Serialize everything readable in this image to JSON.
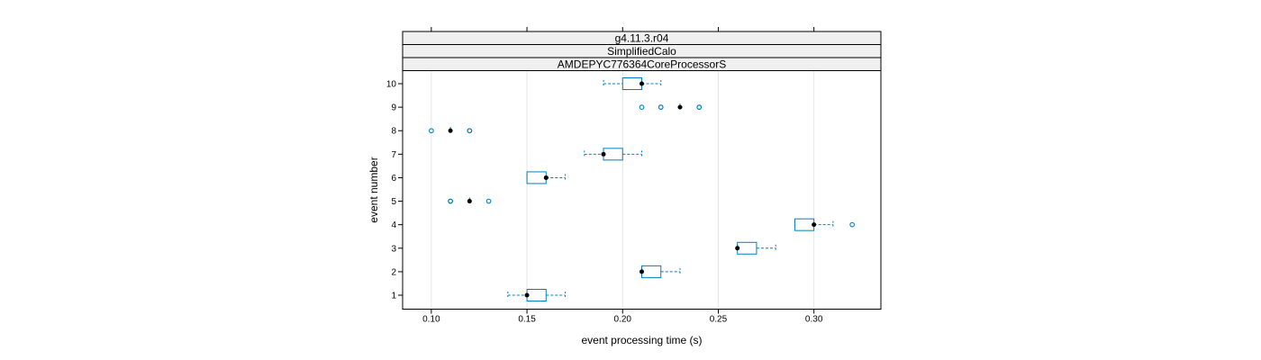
{
  "chart_data": {
    "type": "boxplot",
    "strips": [
      "g4.11.3.r04",
      "SimplifiedCalo",
      "AMDEPYC776364CoreProcessorS"
    ],
    "xlabel": "event processing time (s)",
    "ylabel": "event number",
    "xlim": [
      0.085,
      0.335
    ],
    "x_ticks": [
      0.1,
      0.15,
      0.2,
      0.25,
      0.3
    ],
    "x_tick_labels": [
      "0.10",
      "0.15",
      "0.20",
      "0.25",
      "0.30"
    ],
    "categories": [
      "1",
      "2",
      "3",
      "4",
      "5",
      "6",
      "7",
      "8",
      "9",
      "10"
    ],
    "grid": true,
    "colors": {
      "box": "#0080c0",
      "median_dot": "#000000"
    },
    "boxes": [
      {
        "event": "1",
        "whisker_low": 0.14,
        "q1": 0.15,
        "median": 0.15,
        "q3": 0.16,
        "whisker_high": 0.17,
        "outliers": []
      },
      {
        "event": "2",
        "whisker_low": 0.21,
        "q1": 0.21,
        "median": 0.21,
        "q3": 0.22,
        "whisker_high": 0.23,
        "outliers": []
      },
      {
        "event": "3",
        "whisker_low": 0.26,
        "q1": 0.26,
        "median": 0.26,
        "q3": 0.27,
        "whisker_high": 0.28,
        "outliers": []
      },
      {
        "event": "4",
        "whisker_low": 0.29,
        "q1": 0.29,
        "median": 0.3,
        "q3": 0.3,
        "whisker_high": 0.31,
        "outliers": [
          0.32
        ]
      },
      {
        "event": "5",
        "whisker_low": 0.12,
        "q1": 0.12,
        "median": 0.12,
        "q3": 0.12,
        "whisker_high": 0.12,
        "outliers": [
          0.11,
          0.11,
          0.13
        ]
      },
      {
        "event": "6",
        "whisker_low": 0.15,
        "q1": 0.15,
        "median": 0.16,
        "q3": 0.16,
        "whisker_high": 0.17,
        "outliers": []
      },
      {
        "event": "7",
        "whisker_low": 0.18,
        "q1": 0.19,
        "median": 0.19,
        "q3": 0.2,
        "whisker_high": 0.21,
        "outliers": []
      },
      {
        "event": "8",
        "whisker_low": 0.11,
        "q1": 0.11,
        "median": 0.11,
        "q3": 0.11,
        "whisker_high": 0.11,
        "outliers": [
          0.1,
          0.12,
          0.12
        ]
      },
      {
        "event": "9",
        "whisker_low": 0.23,
        "q1": 0.23,
        "median": 0.23,
        "q3": 0.23,
        "whisker_high": 0.23,
        "outliers": [
          0.21,
          0.22,
          0.22,
          0.24,
          0.24
        ]
      },
      {
        "event": "10",
        "whisker_low": 0.19,
        "q1": 0.2,
        "median": 0.21,
        "q3": 0.21,
        "whisker_high": 0.22,
        "outliers": []
      }
    ]
  }
}
